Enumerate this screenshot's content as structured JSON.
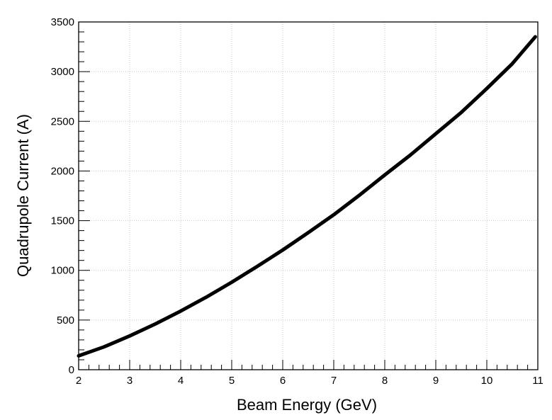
{
  "chart_data": {
    "type": "line",
    "title": "",
    "xlabel": "Beam Energy  (GeV)",
    "ylabel": "Quadrupole Current  (A)",
    "xlim": [
      2,
      11
    ],
    "ylim": [
      0,
      3500
    ],
    "xticks": [
      2,
      3,
      4,
      5,
      6,
      7,
      8,
      9,
      10,
      11
    ],
    "yticks": [
      0,
      500,
      1000,
      1500,
      2000,
      2500,
      3000,
      3500
    ],
    "grid": true,
    "legend": "none",
    "series": [
      {
        "color": "#000000",
        "x": [
          2.0,
          2.5,
          3.0,
          3.5,
          4.0,
          4.5,
          5.0,
          5.5,
          6.0,
          6.5,
          7.0,
          7.5,
          8.0,
          8.5,
          9.0,
          9.5,
          10.0,
          10.5,
          10.95
        ],
        "y": [
          140,
          230,
          340,
          460,
          590,
          730,
          880,
          1040,
          1205,
          1380,
          1560,
          1755,
          1960,
          2160,
          2375,
          2590,
          2830,
          3080,
          3350
        ]
      }
    ]
  }
}
